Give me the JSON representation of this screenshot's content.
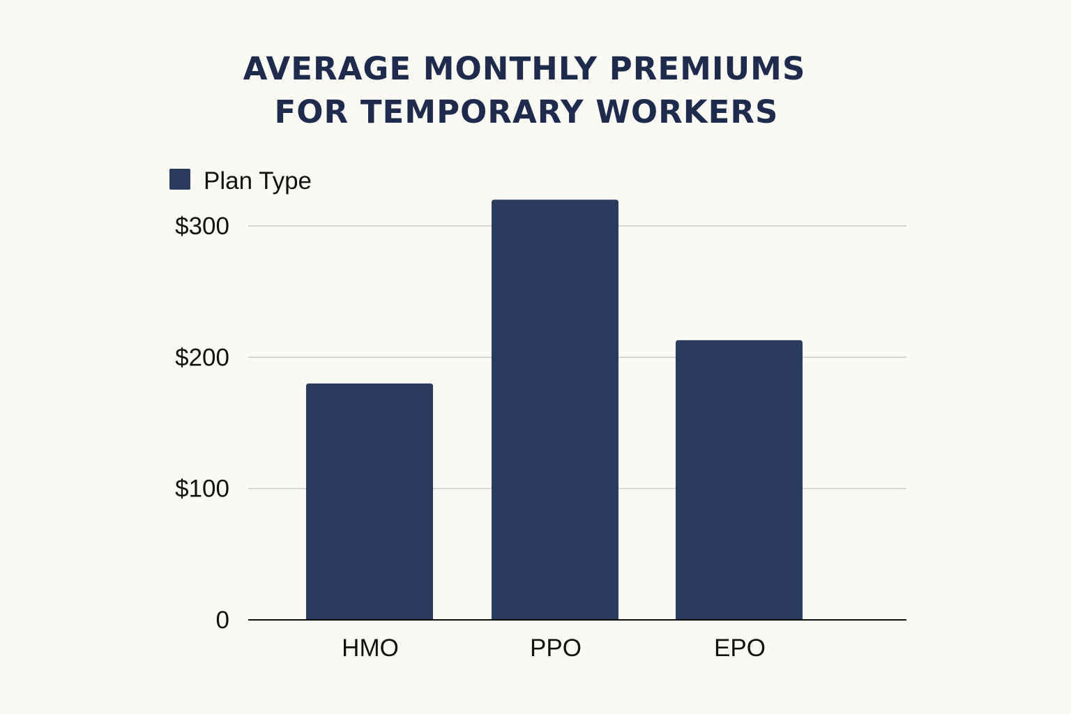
{
  "chart_data": {
    "type": "bar",
    "title_lines": [
      "AVERAGE MONTHLY PREMIUMS",
      "FOR TEMPORARY WORKERS"
    ],
    "legend": {
      "label": "Plan Type",
      "position": "top-left"
    },
    "categories": [
      "HMO",
      "PPO",
      "EPO"
    ],
    "series": [
      {
        "name": "Plan Type",
        "values": [
          180,
          320,
          213
        ],
        "color": "#2b3b5e"
      }
    ],
    "y_ticks": [
      {
        "value": 0,
        "label": "0"
      },
      {
        "value": 100,
        "label": "$100"
      },
      {
        "value": 200,
        "label": "$200"
      },
      {
        "value": 300,
        "label": "$300"
      }
    ],
    "ylim": [
      0,
      340
    ],
    "grid": true,
    "xlabel": "",
    "ylabel": ""
  }
}
